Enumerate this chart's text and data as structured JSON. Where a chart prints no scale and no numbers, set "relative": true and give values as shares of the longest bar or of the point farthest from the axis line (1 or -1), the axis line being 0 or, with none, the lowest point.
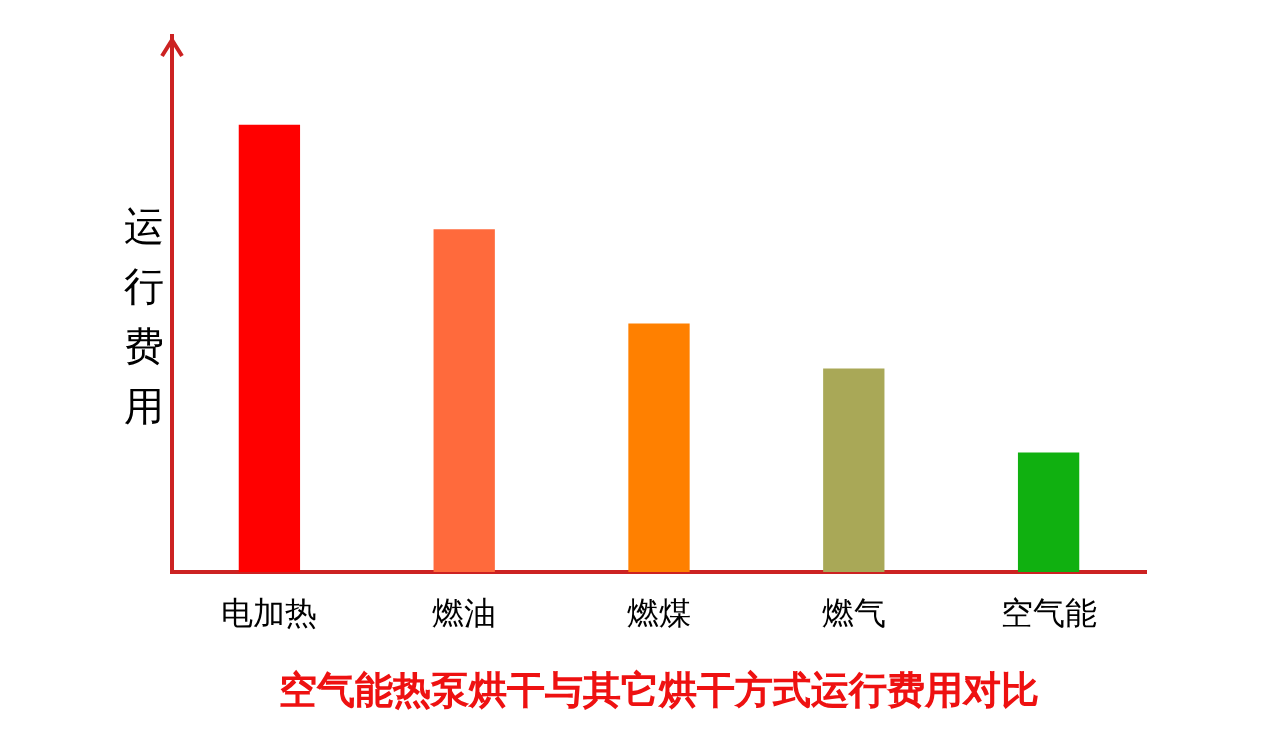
{
  "chart_data": {
    "type": "bar",
    "title": "空气能热泵烘干与其它烘干方式运行费用对比",
    "ylabel": "运行费用",
    "categories": [
      "电加热",
      "燃油",
      "燃煤",
      "燃气",
      "空气能"
    ],
    "values": [
      1,
      0.766,
      0.555,
      0.454,
      0.266
    ],
    "colors": [
      "#ff0000",
      "#ff6a3c",
      "#ff8000",
      "#a9a857",
      "#10b010"
    ],
    "relative": true,
    "grid": false,
    "legend": false
  }
}
